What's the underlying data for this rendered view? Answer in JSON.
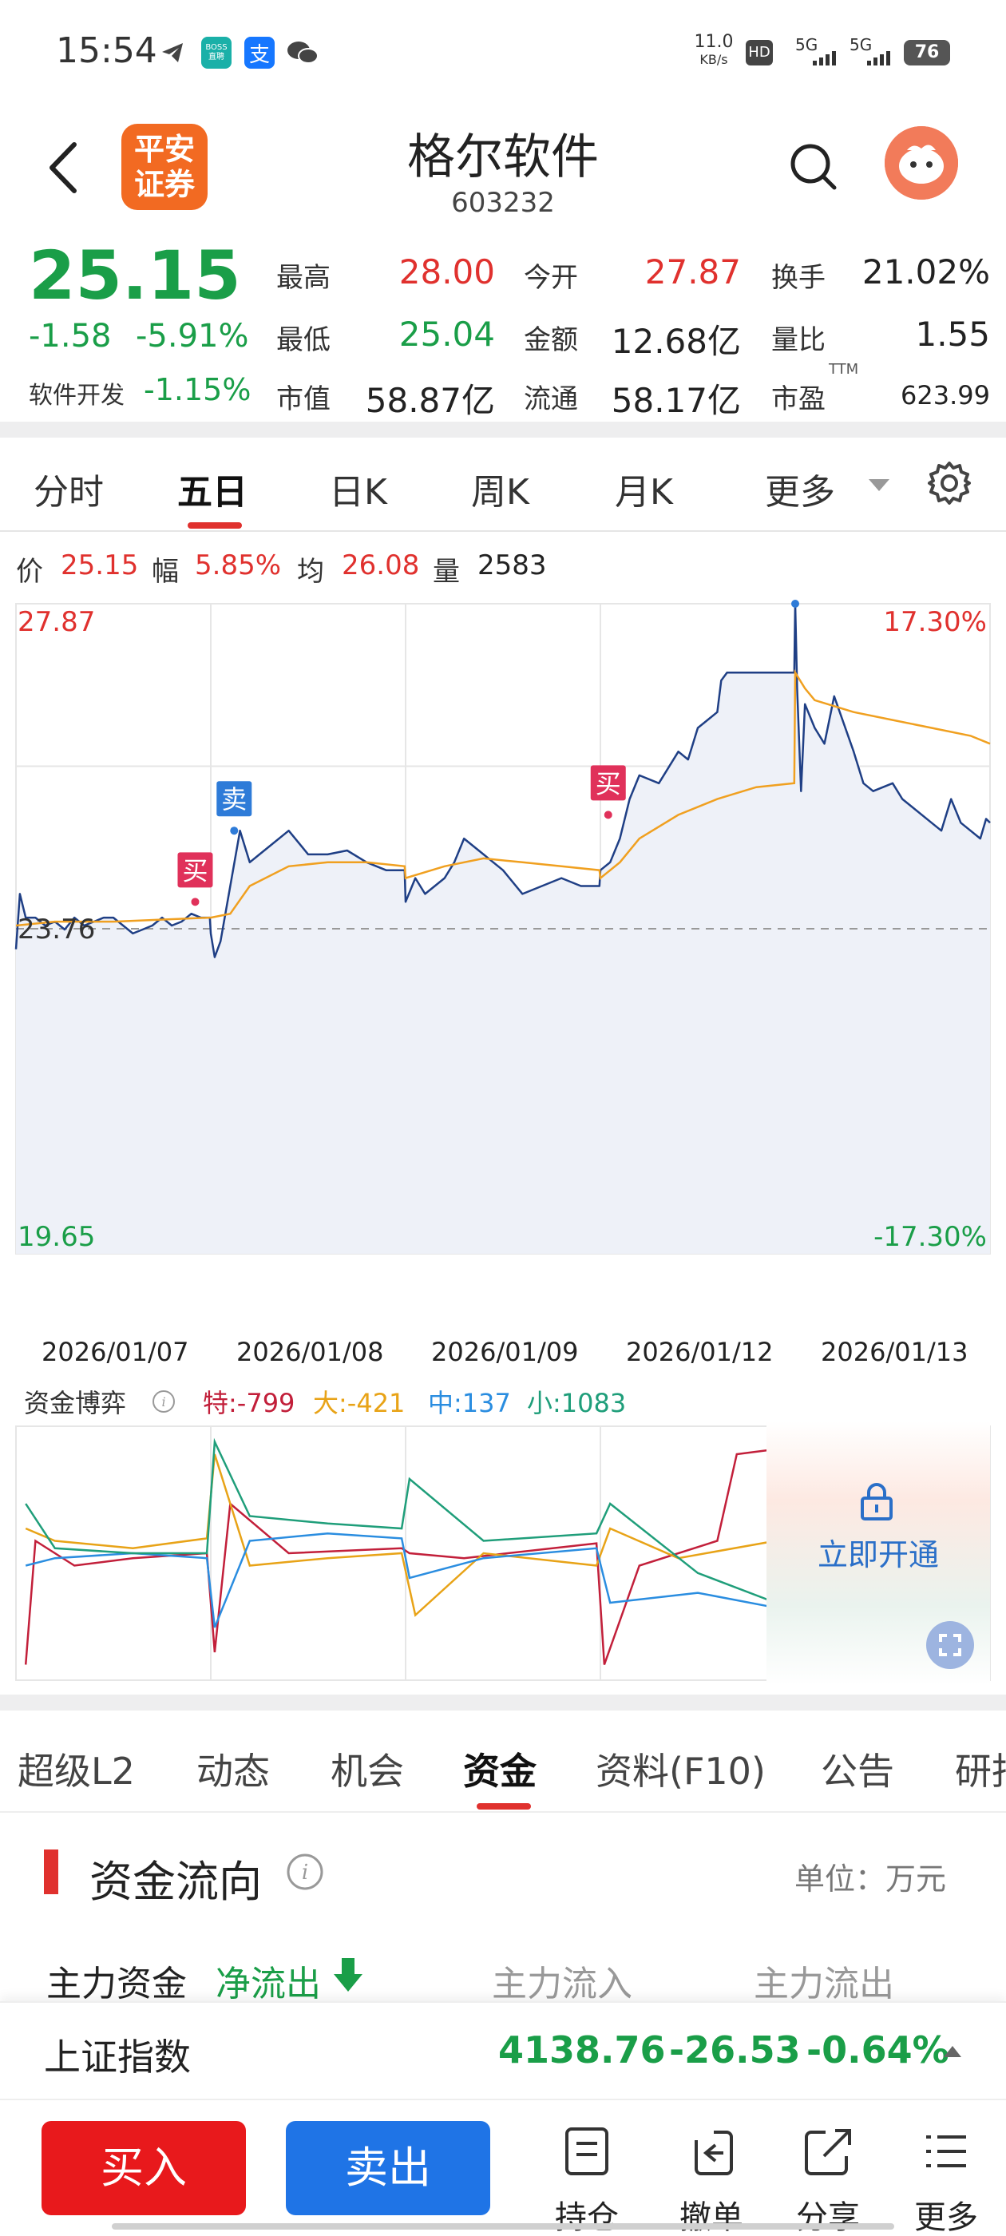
{
  "status_bar": {
    "time": "15:54",
    "speed": "11.0",
    "speed_unit": "KB/s",
    "hd": "HD",
    "net1": "5G",
    "net2": "5G",
    "battery": "76",
    "icons": [
      "telegram-icon",
      "boss-zhipin-icon",
      "alipay-icon",
      "wechat-icon"
    ],
    "boss_label": "BOSS\n直聘",
    "alipay_label": "支"
  },
  "header": {
    "logo_text": "平安\n证券",
    "stock_name": "格尔软件",
    "stock_code": "603232"
  },
  "quote": {
    "price": "25.15",
    "change": "-1.58",
    "change_pct": "-5.91%",
    "sector_label": "软件开发",
    "sector_change": "-1.15%",
    "fields": [
      {
        "label": "最高",
        "value": "28.00",
        "color": "#e0312e"
      },
      {
        "label": "今开",
        "value": "27.87",
        "color": "#e0312e"
      },
      {
        "label": "换手",
        "value": "21.02%",
        "color": "#222222"
      },
      {
        "label": "最低",
        "value": "25.04",
        "color": "#1a9e48"
      },
      {
        "label": "金额",
        "value": "12.68亿",
        "color": "#222222"
      },
      {
        "label": "量比",
        "value": "1.55",
        "color": "#222222"
      },
      {
        "label": "市值",
        "value": "58.87亿",
        "color": "#222222"
      },
      {
        "label": "流通",
        "value": "58.17亿",
        "color": "#222222"
      },
      {
        "label": "市盈",
        "value": "623.99",
        "color": "#222222"
      }
    ],
    "pe_sup": "TTM"
  },
  "chart_tabs": [
    "分时",
    "五日",
    "日K",
    "周K",
    "月K",
    "更多"
  ],
  "active_chart_tab": "五日",
  "info_row": {
    "price_label": "价",
    "price": "25.15",
    "range_label": "幅",
    "range": "5.85%",
    "avg_label": "均",
    "avg": "26.08",
    "vol_label": "量",
    "vol": "2583"
  },
  "chart_data": {
    "type": "line",
    "title": "",
    "y_top_label": "27.87",
    "y_bottom_label": "19.65",
    "pct_top_label": "17.30%",
    "pct_bottom_label": "-17.30%",
    "prev_close_label": "23.76",
    "prev_close": 23.76,
    "ylim": [
      19.65,
      27.87
    ],
    "days": [
      "2026/01/07",
      "2026/01/08",
      "2026/01/09",
      "2026/01/12",
      "2026/01/13"
    ],
    "series": [
      {
        "name": "价",
        "color": "#1f3f85",
        "x": [
          0.0,
          0.02,
          0.05,
          0.1,
          0.15,
          0.2,
          0.25,
          0.3,
          0.35,
          0.4,
          0.45,
          0.5,
          0.55,
          0.6,
          0.65,
          0.7,
          0.75,
          0.8,
          0.85,
          0.9,
          0.95,
          0.995,
          1.0,
          1.02,
          1.05,
          1.1,
          1.15,
          1.2,
          1.25,
          1.3,
          1.4,
          1.5,
          1.6,
          1.7,
          1.8,
          1.9,
          1.995,
          2.0,
          2.05,
          2.1,
          2.2,
          2.25,
          2.3,
          2.4,
          2.45,
          2.5,
          2.6,
          2.7,
          2.8,
          2.9,
          2.995,
          3.0,
          3.05,
          3.1,
          3.15,
          3.2,
          3.3,
          3.4,
          3.45,
          3.5,
          3.55,
          3.6,
          3.62,
          3.65,
          3.7,
          3.8,
          3.9,
          3.995,
          4.0,
          4.01,
          4.03,
          4.05,
          4.1,
          4.15,
          4.2,
          4.3,
          4.35,
          4.4,
          4.5,
          4.55,
          4.6,
          4.7,
          4.75,
          4.8,
          4.85,
          4.9,
          4.95,
          4.98,
          5.0
        ],
        "y": [
          23.5,
          24.2,
          23.9,
          23.9,
          23.8,
          23.85,
          23.75,
          23.9,
          23.8,
          23.85,
          23.9,
          23.9,
          23.8,
          23.7,
          23.75,
          23.8,
          23.9,
          23.8,
          23.85,
          23.95,
          23.9,
          23.9,
          23.7,
          23.4,
          23.6,
          24.3,
          25.0,
          24.6,
          24.7,
          24.8,
          25.0,
          24.7,
          24.7,
          24.75,
          24.6,
          24.5,
          24.5,
          24.1,
          24.4,
          24.2,
          24.4,
          24.6,
          24.9,
          24.7,
          24.6,
          24.5,
          24.2,
          24.3,
          24.4,
          24.3,
          24.3,
          24.5,
          24.6,
          24.9,
          25.4,
          25.7,
          25.6,
          26.0,
          25.9,
          26.3,
          26.4,
          26.5,
          26.9,
          27.0,
          27.0,
          27.0,
          27.0,
          27.0,
          27.87,
          26.8,
          25.5,
          26.6,
          26.3,
          26.1,
          26.7,
          26.0,
          25.6,
          25.5,
          25.6,
          25.4,
          25.3,
          25.1,
          25.0,
          25.4,
          25.1,
          25.0,
          24.9,
          25.15,
          25.1
        ]
      },
      {
        "name": "均",
        "color": "#f0a020",
        "x": [
          0.0,
          0.2,
          0.5,
          0.995,
          1.0,
          1.1,
          1.2,
          1.4,
          1.6,
          1.8,
          1.995,
          2.0,
          2.2,
          2.4,
          2.6,
          2.8,
          2.995,
          3.0,
          3.1,
          3.2,
          3.4,
          3.6,
          3.8,
          3.995,
          4.0,
          4.05,
          4.1,
          4.3,
          4.5,
          4.7,
          4.9,
          5.0
        ],
        "y": [
          23.8,
          23.85,
          23.85,
          23.9,
          23.9,
          23.95,
          24.3,
          24.55,
          24.6,
          24.6,
          24.55,
          24.4,
          24.55,
          24.65,
          24.6,
          24.55,
          24.5,
          24.4,
          24.6,
          24.9,
          25.2,
          25.4,
          25.55,
          25.6,
          27.0,
          26.8,
          26.65,
          26.5,
          26.4,
          26.3,
          26.2,
          26.1
        ]
      }
    ],
    "markers": [
      {
        "label": "买",
        "day_pos": 0.92,
        "price": 24.1,
        "color": "#e0315a"
      },
      {
        "label": "卖",
        "day_pos": 1.12,
        "price": 25.0,
        "color": "#2e7bd8"
      },
      {
        "label": "买",
        "day_pos": 3.04,
        "price": 25.2,
        "color": "#e0315a"
      },
      {
        "label": "卖",
        "day_pos": 4.0,
        "price": 27.87,
        "color": "#2e7bd8"
      }
    ]
  },
  "fund_game": {
    "label": "资金博弈",
    "te": "特:-799",
    "da": "大:-421",
    "zhong": "中:137",
    "xiao": "小:1083",
    "te_color": "#c21f3a",
    "da_color": "#e8a317",
    "zhong_color": "#2a8de0",
    "xiao_color": "#1f9e7a",
    "unlock_text": "立即开通"
  },
  "bottom_tabs": [
    "超级L2",
    "动态",
    "机会",
    "资金",
    "资料(F10)",
    "公告",
    "研报"
  ],
  "active_bottom_tab": "资金",
  "fund_flow": {
    "title": "资金流向",
    "unit": "单位：万元",
    "main_label": "主力资金",
    "net_label": "净流出",
    "inflow": "主力流入",
    "outflow": "主力流出"
  },
  "index_bar": {
    "name": "上证指数",
    "value": "4138.76",
    "change": "-26.53",
    "pct": "-0.64%"
  },
  "actions": {
    "buy": "买入",
    "sell": "卖出",
    "position": "持仓",
    "cancel": "撤单",
    "share": "分享",
    "more": "更多"
  }
}
